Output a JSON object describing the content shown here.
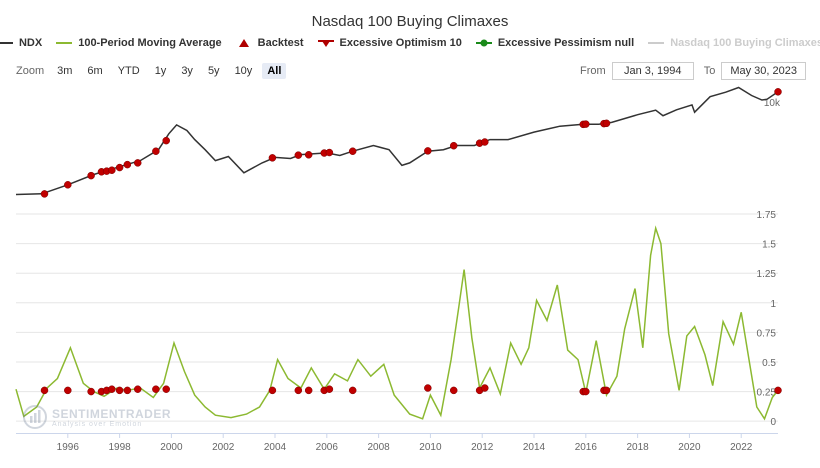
{
  "title": "Nasdaq 100 Buying Climaxes",
  "legend": [
    {
      "label": "NDX",
      "color": "#333333",
      "kind": "line",
      "hidden": false
    },
    {
      "label": "100-Period Moving Average",
      "color": "#8cb931",
      "kind": "line",
      "hidden": false
    },
    {
      "label": "Backtest",
      "color": "#b00000",
      "kind": "triangle",
      "hidden": false
    },
    {
      "label": "Excessive Optimism 10",
      "color": "#b00000",
      "kind": "flag",
      "hidden": false
    },
    {
      "label": "Excessive Pessimism null",
      "color": "#1a8a1a",
      "kind": "dot",
      "hidden": false
    },
    {
      "label": "Nasdaq 100 Buying Climaxes",
      "color": "#cccccc",
      "kind": "line",
      "hidden": true
    }
  ],
  "zoom": {
    "label": "Zoom",
    "buttons": [
      "3m",
      "6m",
      "YTD",
      "1y",
      "3y",
      "5y",
      "10y",
      "All"
    ],
    "active": "All"
  },
  "range": {
    "from_label": "From",
    "from": "Jan 3, 1994",
    "to_label": "To",
    "to": "May 30, 2023"
  },
  "watermark": {
    "name": "SENTIMENTRADER",
    "tagline": "Analysis over Emotion"
  },
  "colors": {
    "ndx": "#333333",
    "ma": "#8cb931",
    "signal": "#c00000",
    "grid": "#e6e6e6"
  },
  "chart_data": {
    "type": "line",
    "title": "Nasdaq 100 Buying Climaxes",
    "x_range": [
      1994.0,
      2023.42
    ],
    "x_ticks": [
      1996,
      1998,
      2000,
      2002,
      2004,
      2006,
      2008,
      2010,
      2012,
      2014,
      2016,
      2018,
      2020,
      2022
    ],
    "upper_panel": {
      "name": "NDX",
      "scale": "log",
      "y_range": [
        250,
        18000
      ],
      "y_ticks": [
        {
          "value": 10000,
          "label": "10k"
        }
      ],
      "points": [
        [
          1994.0,
          400
        ],
        [
          1995.0,
          410
        ],
        [
          1996.0,
          560
        ],
        [
          1997.0,
          800
        ],
        [
          1998.0,
          1050
        ],
        [
          1998.8,
          1300
        ],
        [
          1999.5,
          1900
        ],
        [
          1999.9,
          3300
        ],
        [
          2000.2,
          4500
        ],
        [
          2000.6,
          3700
        ],
        [
          2000.9,
          2700
        ],
        [
          2001.3,
          1900
        ],
        [
          2001.7,
          1300
        ],
        [
          2002.2,
          1500
        ],
        [
          2002.8,
          850
        ],
        [
          2003.5,
          1200
        ],
        [
          2004.0,
          1450
        ],
        [
          2004.6,
          1400
        ],
        [
          2005.0,
          1600
        ],
        [
          2006.0,
          1700
        ],
        [
          2006.5,
          1550
        ],
        [
          2007.0,
          1800
        ],
        [
          2007.8,
          2200
        ],
        [
          2008.4,
          1900
        ],
        [
          2008.9,
          1100
        ],
        [
          2009.2,
          1200
        ],
        [
          2009.9,
          1800
        ],
        [
          2010.5,
          1900
        ],
        [
          2011.0,
          2200
        ],
        [
          2011.7,
          2200
        ],
        [
          2012.3,
          2700
        ],
        [
          2013.0,
          2700
        ],
        [
          2014.0,
          3500
        ],
        [
          2015.0,
          4300
        ],
        [
          2015.9,
          4600
        ],
        [
          2016.5,
          4600
        ],
        [
          2017.0,
          4900
        ],
        [
          2018.0,
          6400
        ],
        [
          2018.7,
          7500
        ],
        [
          2018.98,
          6200
        ],
        [
          2019.5,
          7600
        ],
        [
          2020.1,
          9000
        ],
        [
          2020.2,
          7000
        ],
        [
          2020.8,
          12000
        ],
        [
          2021.4,
          14000
        ],
        [
          2021.9,
          16500
        ],
        [
          2022.4,
          12500
        ],
        [
          2022.8,
          10700
        ],
        [
          2023.0,
          11000
        ],
        [
          2023.42,
          14200
        ]
      ],
      "signals": [
        [
          1995.1,
          408
        ],
        [
          1996.0,
          560
        ],
        [
          1996.9,
          770
        ],
        [
          1997.3,
          880
        ],
        [
          1997.5,
          900
        ],
        [
          1997.7,
          930
        ],
        [
          1998.0,
          1020
        ],
        [
          1998.3,
          1130
        ],
        [
          1998.7,
          1200
        ],
        [
          1999.4,
          1800
        ],
        [
          1999.8,
          2600
        ],
        [
          2003.9,
          1430
        ],
        [
          2004.9,
          1570
        ],
        [
          2005.3,
          1590
        ],
        [
          2005.9,
          1690
        ],
        [
          2006.1,
          1720
        ],
        [
          2007.0,
          1800
        ],
        [
          2009.9,
          1820
        ],
        [
          2010.9,
          2180
        ],
        [
          2011.9,
          2380
        ],
        [
          2012.1,
          2480
        ],
        [
          2015.9,
          4580
        ],
        [
          2016.0,
          4620
        ],
        [
          2016.7,
          4700
        ],
        [
          2016.8,
          4750
        ],
        [
          2023.42,
          14200
        ]
      ]
    },
    "lower_panel": {
      "name": "100-Period Moving Average",
      "y_range": [
        -0.1,
        1.75
      ],
      "y_ticks": [
        0,
        0.25,
        0.5,
        0.75,
        1,
        1.25,
        1.5,
        1.75
      ],
      "points": [
        [
          1994.0,
          0.27
        ],
        [
          1994.3,
          0.04
        ],
        [
          1994.8,
          0.12
        ],
        [
          1995.2,
          0.28
        ],
        [
          1995.6,
          0.36
        ],
        [
          1996.1,
          0.62
        ],
        [
          1996.6,
          0.32
        ],
        [
          1997.0,
          0.25
        ],
        [
          1997.4,
          0.21
        ],
        [
          1997.9,
          0.28
        ],
        [
          1998.3,
          0.26
        ],
        [
          1998.8,
          0.28
        ],
        [
          1999.3,
          0.2
        ],
        [
          1999.7,
          0.32
        ],
        [
          2000.1,
          0.66
        ],
        [
          2000.5,
          0.42
        ],
        [
          2000.9,
          0.22
        ],
        [
          2001.3,
          0.12
        ],
        [
          2001.7,
          0.05
        ],
        [
          2002.3,
          0.03
        ],
        [
          2002.9,
          0.06
        ],
        [
          2003.4,
          0.12
        ],
        [
          2003.8,
          0.26
        ],
        [
          2004.1,
          0.52
        ],
        [
          2004.5,
          0.36
        ],
        [
          2005.0,
          0.28
        ],
        [
          2005.4,
          0.45
        ],
        [
          2005.9,
          0.27
        ],
        [
          2006.3,
          0.4
        ],
        [
          2006.8,
          0.34
        ],
        [
          2007.2,
          0.52
        ],
        [
          2007.7,
          0.38
        ],
        [
          2008.2,
          0.48
        ],
        [
          2008.6,
          0.22
        ],
        [
          2009.2,
          0.06
        ],
        [
          2009.7,
          0.02
        ],
        [
          2010.0,
          0.22
        ],
        [
          2010.4,
          0.05
        ],
        [
          2010.8,
          0.52
        ],
        [
          2011.1,
          0.97
        ],
        [
          2011.3,
          1.28
        ],
        [
          2011.6,
          0.7
        ],
        [
          2011.9,
          0.28
        ],
        [
          2012.3,
          0.45
        ],
        [
          2012.7,
          0.23
        ],
        [
          2013.1,
          0.66
        ],
        [
          2013.5,
          0.48
        ],
        [
          2013.8,
          0.62
        ],
        [
          2014.1,
          1.02
        ],
        [
          2014.5,
          0.85
        ],
        [
          2014.9,
          1.15
        ],
        [
          2015.3,
          0.6
        ],
        [
          2015.7,
          0.52
        ],
        [
          2016.0,
          0.24
        ],
        [
          2016.4,
          0.68
        ],
        [
          2016.8,
          0.22
        ],
        [
          2017.2,
          0.38
        ],
        [
          2017.5,
          0.78
        ],
        [
          2017.9,
          1.12
        ],
        [
          2018.2,
          0.62
        ],
        [
          2018.5,
          1.4
        ],
        [
          2018.7,
          1.63
        ],
        [
          2018.9,
          1.5
        ],
        [
          2019.2,
          0.74
        ],
        [
          2019.6,
          0.26
        ],
        [
          2019.9,
          0.72
        ],
        [
          2020.2,
          0.8
        ],
        [
          2020.6,
          0.56
        ],
        [
          2020.9,
          0.3
        ],
        [
          2021.3,
          0.84
        ],
        [
          2021.7,
          0.65
        ],
        [
          2022.0,
          0.92
        ],
        [
          2022.3,
          0.52
        ],
        [
          2022.6,
          0.12
        ],
        [
          2022.9,
          0.02
        ],
        [
          2023.2,
          0.2
        ],
        [
          2023.42,
          0.26
        ]
      ],
      "signals": [
        [
          1995.1,
          0.26
        ],
        [
          1996.0,
          0.26
        ],
        [
          1996.9,
          0.25
        ],
        [
          1997.3,
          0.25
        ],
        [
          1997.5,
          0.26
        ],
        [
          1997.7,
          0.27
        ],
        [
          1998.0,
          0.26
        ],
        [
          1998.3,
          0.26
        ],
        [
          1998.7,
          0.27
        ],
        [
          1999.4,
          0.27
        ],
        [
          1999.8,
          0.27
        ],
        [
          2003.9,
          0.26
        ],
        [
          2004.9,
          0.26
        ],
        [
          2005.3,
          0.26
        ],
        [
          2005.9,
          0.26
        ],
        [
          2006.1,
          0.27
        ],
        [
          2007.0,
          0.26
        ],
        [
          2009.9,
          0.28
        ],
        [
          2010.9,
          0.26
        ],
        [
          2011.9,
          0.26
        ],
        [
          2012.1,
          0.28
        ],
        [
          2015.9,
          0.25
        ],
        [
          2016.0,
          0.25
        ],
        [
          2016.7,
          0.26
        ],
        [
          2016.8,
          0.26
        ],
        [
          2023.42,
          0.26
        ]
      ]
    }
  }
}
